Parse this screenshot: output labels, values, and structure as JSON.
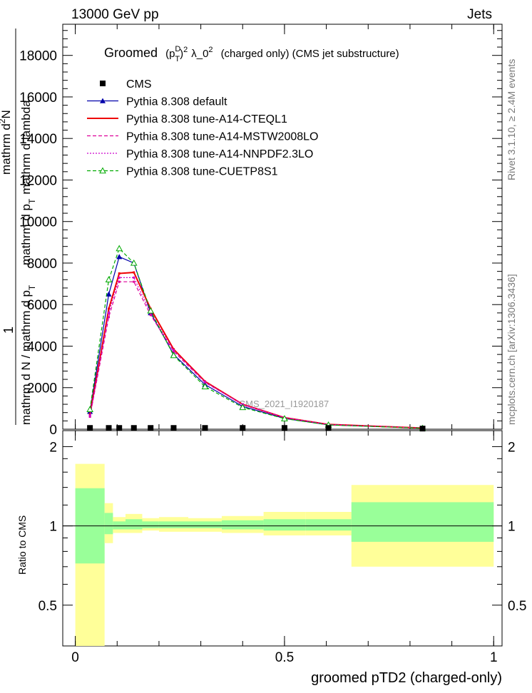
{
  "header": {
    "left": "13000 GeV pp",
    "right": "Jets"
  },
  "side_labels": {
    "rivet": "Rivet 3.1.10, ≥ 2.4M events",
    "mcplots": "mcplots.cern.ch [arXiv:1306.3436]"
  },
  "watermark": "CMS_2021_I1920187",
  "chart_data": {
    "type": "line",
    "title": "Groomed (p_T^D)^2 λ_0^2 (charged only) (CMS jet substructure)",
    "title_parts": {
      "pre": "Groomed",
      "sym_p": "p",
      "sup_d": "D",
      "sub_t": "T",
      "sup_2a": "2",
      "lam": "λ_0",
      "sup_2b": "2",
      "post": "(charged only) (CMS jet substructure)"
    },
    "xlabel": "groomed pTD2 (charged-only)",
    "ylabel_parts": [
      "1",
      "mathrm d N / mathrm d p_T",
      "mathrm d²N",
      "mathrm d p_T mathrm d lambda"
    ],
    "ylabel_main": {
      "one": "1",
      "lower": "mathrm d N / mathrm d p",
      "lower_sub": "T",
      "upper_a": "mathrm d",
      "upper_sup": "2",
      "upper_b": "N",
      "den_a": "mathrm d p",
      "den_sub": "T",
      "den_b": "mathrm d lambda"
    },
    "ylabel_ratio": "Ratio to CMS",
    "xlim": [
      -0.03,
      1.02
    ],
    "ylim_main": [
      0,
      19500
    ],
    "ylim_ratio": [
      0.35,
      2.3
    ],
    "x_ticks": [
      0,
      0.5,
      1
    ],
    "x_tick_labels": [
      "0",
      "0.5",
      "1"
    ],
    "y_ticks_main": [
      0,
      2000,
      4000,
      6000,
      8000,
      10000,
      12000,
      14000,
      16000,
      18000
    ],
    "y_tick_labels_main": [
      "0",
      "2000",
      "4000",
      "6000",
      "8000",
      "10000",
      "12000",
      "14000",
      "16000",
      "18000"
    ],
    "y_ticks_ratio": [
      0.5,
      1,
      2
    ],
    "y_tick_labels_ratio": [
      "0.5",
      "1",
      "2"
    ],
    "legend_position": "top-left",
    "bins": [
      [
        0.0,
        0.07
      ],
      [
        0.07,
        0.09
      ],
      [
        0.09,
        0.12
      ],
      [
        0.12,
        0.16
      ],
      [
        0.16,
        0.2
      ],
      [
        0.2,
        0.27
      ],
      [
        0.27,
        0.35
      ],
      [
        0.35,
        0.45
      ],
      [
        0.45,
        0.55
      ],
      [
        0.55,
        0.66
      ],
      [
        0.66,
        1.0
      ]
    ],
    "x": [
      0.035,
      0.08,
      0.105,
      0.14,
      0.18,
      0.235,
      0.31,
      0.4,
      0.5,
      0.605,
      0.83
    ],
    "series": [
      {
        "name": "CMS",
        "style": "data",
        "color": "#000000",
        "values": [
          60,
          60,
          60,
          60,
          60,
          60,
          60,
          60,
          60,
          60,
          30
        ]
      },
      {
        "name": "Pythia 8.308 default",
        "style": "solid",
        "marker": "triangle-filled",
        "color": "#0000aa",
        "values": [
          850,
          6500,
          8300,
          8000,
          5600,
          3600,
          2150,
          1100,
          520,
          210,
          50
        ]
      },
      {
        "name": "Pythia 8.308 tune-A14-CTEQL1",
        "style": "solid",
        "marker": "none",
        "color": "#ee0000",
        "values": [
          700,
          5800,
          7500,
          7550,
          5800,
          3850,
          2300,
          1200,
          560,
          230,
          55
        ]
      },
      {
        "name": "Pythia 8.308 tune-A14-MSTW2008LO",
        "style": "dashed",
        "marker": "none",
        "color": "#dd0099",
        "values": [
          600,
          5400,
          7100,
          7100,
          5500,
          3750,
          2250,
          1200,
          560,
          225,
          55
        ]
      },
      {
        "name": "Pythia 8.308 tune-A14-NNPDF2.3LO",
        "style": "dotted",
        "marker": "none",
        "color": "#cc00cc",
        "values": [
          650,
          5600,
          7300,
          7300,
          5600,
          3800,
          2280,
          1190,
          555,
          228,
          55
        ]
      },
      {
        "name": "Pythia 8.308 tune-CUETP8S1",
        "style": "dashed",
        "marker": "triangle-open",
        "color": "#00aa00",
        "values": [
          950,
          7200,
          8700,
          8000,
          5700,
          3550,
          2050,
          1050,
          510,
          205,
          48
        ]
      }
    ],
    "ratio_bands": {
      "outer_color": "#ffff99",
      "inner_color": "#99ff99",
      "outer": [
        [
          0.35,
          1.72
        ],
        [
          0.86,
          1.22
        ],
        [
          0.94,
          1.08
        ],
        [
          0.94,
          1.11
        ],
        [
          0.96,
          1.07
        ],
        [
          0.95,
          1.08
        ],
        [
          0.95,
          1.07
        ],
        [
          0.94,
          1.09
        ],
        [
          0.92,
          1.13
        ],
        [
          0.92,
          1.13
        ],
        [
          0.7,
          1.43
        ]
      ],
      "inner": [
        [
          0.72,
          1.39
        ],
        [
          0.93,
          1.12
        ],
        [
          0.97,
          1.04
        ],
        [
          0.97,
          1.06
        ],
        [
          0.98,
          1.04
        ],
        [
          0.98,
          1.04
        ],
        [
          0.98,
          1.04
        ],
        [
          0.97,
          1.05
        ],
        [
          0.96,
          1.06
        ],
        [
          0.96,
          1.06
        ],
        [
          0.87,
          1.23
        ]
      ]
    }
  }
}
